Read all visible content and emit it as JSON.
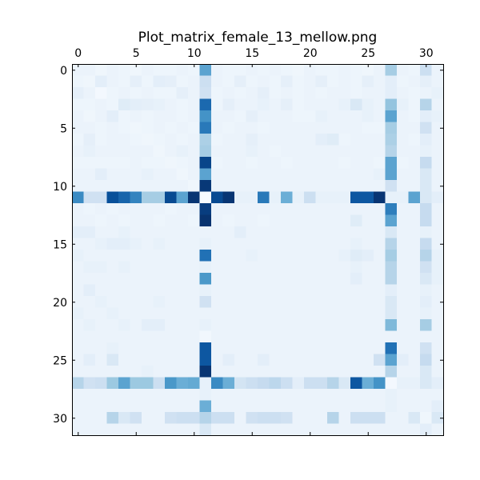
{
  "chart_data": {
    "type": "heatmap",
    "title": "Plot_matrix_female_13_mellow.png",
    "xlabel": "",
    "ylabel": "",
    "x_tick_labels": [
      "0",
      "5",
      "10",
      "15",
      "20",
      "25",
      "30"
    ],
    "y_tick_labels": [
      "0",
      "5",
      "10",
      "15",
      "20",
      "25",
      "30"
    ],
    "x_ticks": [
      0,
      5,
      10,
      15,
      20,
      25,
      30
    ],
    "y_ticks": [
      0,
      5,
      10,
      15,
      20,
      25,
      30
    ],
    "xlim": [
      -0.5,
      31.5
    ],
    "ylim": [
      31.5,
      -0.5
    ],
    "x_axis_position": "top",
    "colormap": "Blues",
    "value_range": [
      0,
      1
    ],
    "grid": false,
    "matrix_size": 32,
    "matrix": [
      [
        0.06,
        0.06,
        0.04,
        0.06,
        0.05,
        0.04,
        0.06,
        0.05,
        0.05,
        0.06,
        0.05,
        0.55,
        0.06,
        0.05,
        0.05,
        0.06,
        0.05,
        0.06,
        0.05,
        0.04,
        0.06,
        0.05,
        0.05,
        0.06,
        0.05,
        0.04,
        0.06,
        0.35,
        0.06,
        0.05,
        0.22,
        0.06
      ],
      [
        0.05,
        0.04,
        0.1,
        0.06,
        0.05,
        0.09,
        0.05,
        0.1,
        0.09,
        0.05,
        0.06,
        0.22,
        0.06,
        0.05,
        0.09,
        0.05,
        0.06,
        0.05,
        0.09,
        0.05,
        0.06,
        0.09,
        0.05,
        0.06,
        0.05,
        0.09,
        0.06,
        0.1,
        0.05,
        0.06,
        0.09,
        0.06
      ],
      [
        0.09,
        0.06,
        0.02,
        0.05,
        0.06,
        0.05,
        0.06,
        0.05,
        0.05,
        0.09,
        0.06,
        0.2,
        0.05,
        0.06,
        0.05,
        0.06,
        0.09,
        0.05,
        0.06,
        0.05,
        0.06,
        0.05,
        0.06,
        0.06,
        0.05,
        0.06,
        0.06,
        0.1,
        0.06,
        0.05,
        0.06,
        0.08
      ],
      [
        0.05,
        0.05,
        0.06,
        0.05,
        0.12,
        0.1,
        0.09,
        0.08,
        0.06,
        0.05,
        0.06,
        0.78,
        0.05,
        0.09,
        0.06,
        0.06,
        0.08,
        0.06,
        0.09,
        0.05,
        0.06,
        0.06,
        0.06,
        0.08,
        0.15,
        0.08,
        0.06,
        0.4,
        0.08,
        0.05,
        0.3,
        0.06
      ],
      [
        0.06,
        0.04,
        0.06,
        0.1,
        0.05,
        0.06,
        0.05,
        0.06,
        0.06,
        0.05,
        0.06,
        0.62,
        0.06,
        0.06,
        0.05,
        0.09,
        0.06,
        0.06,
        0.06,
        0.05,
        0.05,
        0.08,
        0.06,
        0.06,
        0.06,
        0.08,
        0.06,
        0.55,
        0.06,
        0.05,
        0.1,
        0.08
      ],
      [
        0.06,
        0.06,
        0.05,
        0.06,
        0.05,
        0.04,
        0.05,
        0.06,
        0.05,
        0.06,
        0.05,
        0.72,
        0.06,
        0.05,
        0.06,
        0.06,
        0.05,
        0.06,
        0.06,
        0.06,
        0.06,
        0.06,
        0.06,
        0.06,
        0.06,
        0.05,
        0.05,
        0.35,
        0.06,
        0.06,
        0.2,
        0.06
      ],
      [
        0.05,
        0.09,
        0.05,
        0.06,
        0.06,
        0.05,
        0.04,
        0.05,
        0.06,
        0.05,
        0.06,
        0.33,
        0.05,
        0.06,
        0.06,
        0.09,
        0.06,
        0.06,
        0.06,
        0.06,
        0.06,
        0.1,
        0.12,
        0.05,
        0.06,
        0.06,
        0.06,
        0.33,
        0.06,
        0.05,
        0.1,
        0.06
      ],
      [
        0.06,
        0.08,
        0.06,
        0.06,
        0.06,
        0.06,
        0.06,
        0.04,
        0.06,
        0.08,
        0.06,
        0.35,
        0.06,
        0.06,
        0.06,
        0.08,
        0.06,
        0.05,
        0.06,
        0.06,
        0.06,
        0.06,
        0.06,
        0.06,
        0.06,
        0.06,
        0.06,
        0.3,
        0.06,
        0.06,
        0.08,
        0.06
      ],
      [
        0.05,
        0.05,
        0.05,
        0.05,
        0.05,
        0.06,
        0.05,
        0.05,
        0.04,
        0.05,
        0.06,
        0.92,
        0.05,
        0.06,
        0.06,
        0.05,
        0.06,
        0.06,
        0.05,
        0.06,
        0.06,
        0.06,
        0.06,
        0.05,
        0.06,
        0.06,
        0.05,
        0.55,
        0.05,
        0.06,
        0.25,
        0.06
      ],
      [
        0.06,
        0.06,
        0.1,
        0.06,
        0.06,
        0.06,
        0.08,
        0.06,
        0.06,
        0.04,
        0.06,
        0.55,
        0.06,
        0.06,
        0.06,
        0.06,
        0.06,
        0.06,
        0.06,
        0.06,
        0.06,
        0.06,
        0.06,
        0.06,
        0.06,
        0.06,
        0.08,
        0.55,
        0.06,
        0.06,
        0.15,
        0.06
      ],
      [
        0.06,
        0.06,
        0.06,
        0.06,
        0.06,
        0.06,
        0.06,
        0.06,
        0.06,
        0.06,
        0.04,
        0.97,
        0.06,
        0.06,
        0.06,
        0.06,
        0.06,
        0.06,
        0.06,
        0.06,
        0.06,
        0.06,
        0.06,
        0.06,
        0.06,
        0.06,
        0.06,
        0.2,
        0.06,
        0.06,
        0.15,
        0.06
      ],
      [
        0.65,
        0.2,
        0.2,
        0.88,
        0.8,
        0.68,
        0.35,
        0.35,
        0.9,
        0.55,
        0.98,
        0.0,
        0.9,
        0.98,
        0.08,
        0.08,
        0.72,
        0.08,
        0.5,
        0.08,
        0.22,
        0.08,
        0.08,
        0.08,
        0.85,
        0.85,
        0.98,
        0.08,
        0.08,
        0.55,
        0.15,
        0.1
      ],
      [
        0.06,
        0.05,
        0.06,
        0.05,
        0.06,
        0.06,
        0.06,
        0.06,
        0.05,
        0.06,
        0.06,
        0.95,
        0.06,
        0.06,
        0.06,
        0.06,
        0.06,
        0.06,
        0.06,
        0.06,
        0.06,
        0.06,
        0.06,
        0.06,
        0.06,
        0.06,
        0.06,
        0.7,
        0.06,
        0.06,
        0.25,
        0.06
      ],
      [
        0.06,
        0.06,
        0.05,
        0.06,
        0.05,
        0.06,
        0.06,
        0.05,
        0.06,
        0.06,
        0.05,
        0.99,
        0.06,
        0.05,
        0.06,
        0.06,
        0.05,
        0.06,
        0.06,
        0.06,
        0.06,
        0.06,
        0.06,
        0.06,
        0.12,
        0.06,
        0.06,
        0.55,
        0.06,
        0.06,
        0.25,
        0.06
      ],
      [
        0.1,
        0.1,
        0.06,
        0.06,
        0.08,
        0.06,
        0.06,
        0.06,
        0.06,
        0.06,
        0.06,
        0.06,
        0.06,
        0.06,
        0.1,
        0.06,
        0.06,
        0.06,
        0.06,
        0.06,
        0.06,
        0.06,
        0.06,
        0.06,
        0.06,
        0.06,
        0.06,
        0.15,
        0.06,
        0.06,
        0.08,
        0.06
      ],
      [
        0.06,
        0.06,
        0.08,
        0.1,
        0.1,
        0.08,
        0.06,
        0.08,
        0.06,
        0.06,
        0.06,
        0.08,
        0.06,
        0.06,
        0.06,
        0.06,
        0.06,
        0.06,
        0.06,
        0.06,
        0.06,
        0.06,
        0.06,
        0.06,
        0.08,
        0.06,
        0.06,
        0.3,
        0.06,
        0.06,
        0.25,
        0.06
      ],
      [
        0.08,
        0.06,
        0.06,
        0.06,
        0.06,
        0.06,
        0.06,
        0.06,
        0.06,
        0.06,
        0.06,
        0.75,
        0.06,
        0.06,
        0.06,
        0.08,
        0.06,
        0.06,
        0.06,
        0.06,
        0.06,
        0.06,
        0.06,
        0.08,
        0.12,
        0.1,
        0.06,
        0.35,
        0.06,
        0.06,
        0.3,
        0.08
      ],
      [
        0.06,
        0.08,
        0.08,
        0.06,
        0.08,
        0.06,
        0.06,
        0.06,
        0.06,
        0.06,
        0.06,
        0.08,
        0.06,
        0.06,
        0.06,
        0.06,
        0.06,
        0.06,
        0.06,
        0.06,
        0.06,
        0.06,
        0.06,
        0.06,
        0.08,
        0.06,
        0.06,
        0.3,
        0.06,
        0.06,
        0.2,
        0.08
      ],
      [
        0.06,
        0.06,
        0.06,
        0.06,
        0.06,
        0.06,
        0.06,
        0.06,
        0.06,
        0.06,
        0.06,
        0.6,
        0.06,
        0.06,
        0.06,
        0.06,
        0.06,
        0.06,
        0.06,
        0.06,
        0.06,
        0.06,
        0.06,
        0.06,
        0.1,
        0.06,
        0.06,
        0.3,
        0.06,
        0.06,
        0.15,
        0.08
      ],
      [
        0.06,
        0.1,
        0.06,
        0.06,
        0.06,
        0.06,
        0.06,
        0.06,
        0.06,
        0.06,
        0.06,
        0.08,
        0.06,
        0.06,
        0.06,
        0.06,
        0.06,
        0.06,
        0.06,
        0.06,
        0.06,
        0.06,
        0.06,
        0.06,
        0.06,
        0.06,
        0.06,
        0.1,
        0.06,
        0.06,
        0.08,
        0.06
      ],
      [
        0.06,
        0.06,
        0.08,
        0.06,
        0.06,
        0.06,
        0.06,
        0.08,
        0.06,
        0.06,
        0.06,
        0.2,
        0.06,
        0.06,
        0.06,
        0.06,
        0.06,
        0.06,
        0.06,
        0.06,
        0.06,
        0.06,
        0.06,
        0.06,
        0.06,
        0.06,
        0.06,
        0.15,
        0.06,
        0.06,
        0.1,
        0.06
      ],
      [
        0.08,
        0.06,
        0.06,
        0.08,
        0.06,
        0.06,
        0.06,
        0.06,
        0.06,
        0.06,
        0.06,
        0.06,
        0.06,
        0.06,
        0.06,
        0.06,
        0.06,
        0.06,
        0.06,
        0.06,
        0.06,
        0.06,
        0.06,
        0.06,
        0.06,
        0.06,
        0.06,
        0.15,
        0.06,
        0.06,
        0.08,
        0.06
      ],
      [
        0.06,
        0.08,
        0.06,
        0.06,
        0.08,
        0.06,
        0.1,
        0.1,
        0.06,
        0.06,
        0.06,
        0.08,
        0.06,
        0.06,
        0.06,
        0.06,
        0.06,
        0.06,
        0.06,
        0.06,
        0.06,
        0.06,
        0.06,
        0.06,
        0.06,
        0.06,
        0.06,
        0.45,
        0.06,
        0.06,
        0.35,
        0.06
      ],
      [
        0.06,
        0.06,
        0.06,
        0.06,
        0.06,
        0.06,
        0.06,
        0.06,
        0.06,
        0.06,
        0.06,
        0.03,
        0.06,
        0.06,
        0.06,
        0.06,
        0.06,
        0.06,
        0.06,
        0.06,
        0.06,
        0.06,
        0.06,
        0.06,
        0.06,
        0.06,
        0.06,
        0.06,
        0.06,
        0.06,
        0.06,
        0.06
      ],
      [
        0.06,
        0.06,
        0.06,
        0.08,
        0.06,
        0.06,
        0.06,
        0.06,
        0.06,
        0.06,
        0.06,
        0.85,
        0.06,
        0.06,
        0.06,
        0.06,
        0.06,
        0.06,
        0.06,
        0.06,
        0.06,
        0.06,
        0.06,
        0.06,
        0.06,
        0.06,
        0.06,
        0.75,
        0.06,
        0.06,
        0.2,
        0.06
      ],
      [
        0.06,
        0.1,
        0.06,
        0.15,
        0.06,
        0.06,
        0.06,
        0.06,
        0.06,
        0.06,
        0.06,
        0.85,
        0.06,
        0.1,
        0.06,
        0.06,
        0.1,
        0.06,
        0.06,
        0.06,
        0.06,
        0.06,
        0.06,
        0.06,
        0.06,
        0.06,
        0.2,
        0.55,
        0.1,
        0.06,
        0.25,
        0.06
      ],
      [
        0.06,
        0.06,
        0.06,
        0.06,
        0.06,
        0.06,
        0.08,
        0.06,
        0.06,
        0.06,
        0.06,
        0.98,
        0.06,
        0.06,
        0.06,
        0.06,
        0.06,
        0.06,
        0.06,
        0.06,
        0.06,
        0.06,
        0.06,
        0.06,
        0.06,
        0.06,
        0.06,
        0.3,
        0.06,
        0.06,
        0.15,
        0.06
      ],
      [
        0.3,
        0.2,
        0.22,
        0.38,
        0.55,
        0.38,
        0.38,
        0.22,
        0.6,
        0.5,
        0.52,
        0.08,
        0.65,
        0.5,
        0.18,
        0.22,
        0.25,
        0.28,
        0.22,
        0.1,
        0.22,
        0.22,
        0.3,
        0.15,
        0.85,
        0.5,
        0.62,
        0.02,
        0.08,
        0.08,
        0.15,
        0.1
      ],
      [
        0.06,
        0.06,
        0.06,
        0.06,
        0.06,
        0.06,
        0.06,
        0.06,
        0.06,
        0.06,
        0.06,
        0.08,
        0.06,
        0.06,
        0.06,
        0.06,
        0.06,
        0.06,
        0.06,
        0.06,
        0.06,
        0.06,
        0.06,
        0.06,
        0.06,
        0.06,
        0.06,
        0.08,
        0.06,
        0.06,
        0.06,
        0.06
      ],
      [
        0.06,
        0.06,
        0.06,
        0.06,
        0.06,
        0.06,
        0.06,
        0.06,
        0.06,
        0.06,
        0.06,
        0.5,
        0.06,
        0.06,
        0.06,
        0.06,
        0.06,
        0.06,
        0.06,
        0.06,
        0.06,
        0.06,
        0.06,
        0.06,
        0.06,
        0.06,
        0.06,
        0.08,
        0.06,
        0.06,
        0.06,
        0.1
      ],
      [
        0.06,
        0.06,
        0.06,
        0.3,
        0.15,
        0.2,
        0.06,
        0.06,
        0.2,
        0.22,
        0.22,
        0.3,
        0.22,
        0.22,
        0.06,
        0.2,
        0.22,
        0.22,
        0.2,
        0.06,
        0.06,
        0.06,
        0.3,
        0.06,
        0.22,
        0.22,
        0.22,
        0.06,
        0.06,
        0.15,
        0.04,
        0.15
      ],
      [
        0.06,
        0.06,
        0.06,
        0.06,
        0.06,
        0.06,
        0.06,
        0.06,
        0.06,
        0.06,
        0.06,
        0.15,
        0.06,
        0.06,
        0.06,
        0.06,
        0.06,
        0.06,
        0.06,
        0.06,
        0.06,
        0.06,
        0.06,
        0.06,
        0.06,
        0.06,
        0.06,
        0.06,
        0.06,
        0.06,
        0.1,
        0.06
      ]
    ]
  }
}
